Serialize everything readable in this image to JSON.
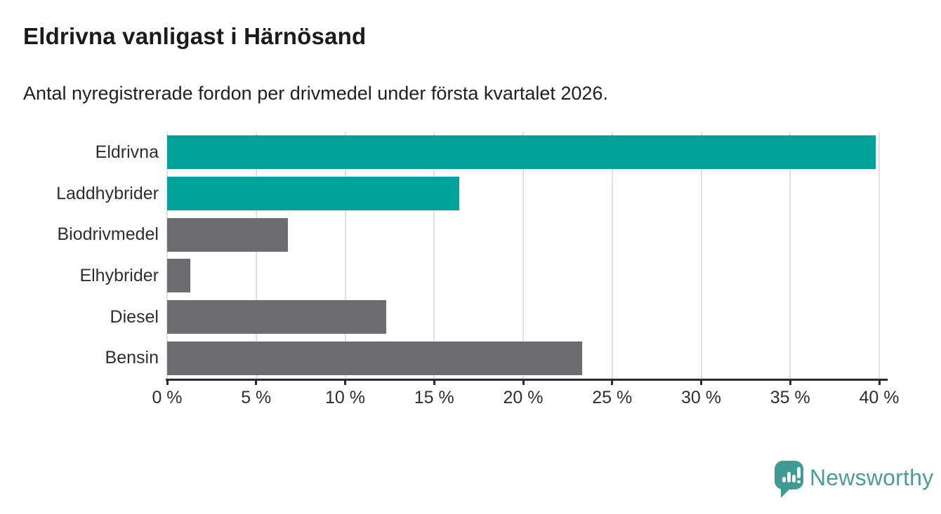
{
  "header": {
    "title": "Eldrivna vanligast i Härnösand",
    "subtitle": "Antal nyregistrerade fordon per drivmedel under första kvartalet 2026."
  },
  "chart_data": {
    "type": "bar",
    "orientation": "horizontal",
    "title": "Eldrivna vanligast i Härnösand",
    "subtitle": "Antal nyregistrerade fordon per drivmedel under första kvartalet 2026.",
    "categories": [
      "Eldrivna",
      "Laddhybrider",
      "Biodrivmedel",
      "Elhybrider",
      "Diesel",
      "Bensin"
    ],
    "values": [
      39.8,
      16.4,
      6.8,
      1.3,
      12.3,
      23.3
    ],
    "bar_colors": [
      "#00a29b",
      "#00a29b",
      "#6c6c71",
      "#6c6c71",
      "#6c6c71",
      "#6c6c71"
    ],
    "highlight_color": "#00a29b",
    "default_color": "#6c6c71",
    "unit": "%",
    "xlabel": "",
    "ylabel": "",
    "xlim": [
      0,
      40
    ],
    "x_ticks": [
      0,
      5,
      10,
      15,
      20,
      25,
      30,
      35,
      40
    ],
    "x_tick_labels": [
      "0 %",
      "5 %",
      "10 %",
      "15 %",
      "20 %",
      "25 %",
      "30 %",
      "35 %",
      "40 %"
    ],
    "grid": "vertical-only",
    "legend": "none"
  },
  "footer": {
    "brand": "Newsworthy",
    "brand_color": "#4b9c98",
    "logo_icon": "bar-chart-speech-bubble-icon"
  }
}
